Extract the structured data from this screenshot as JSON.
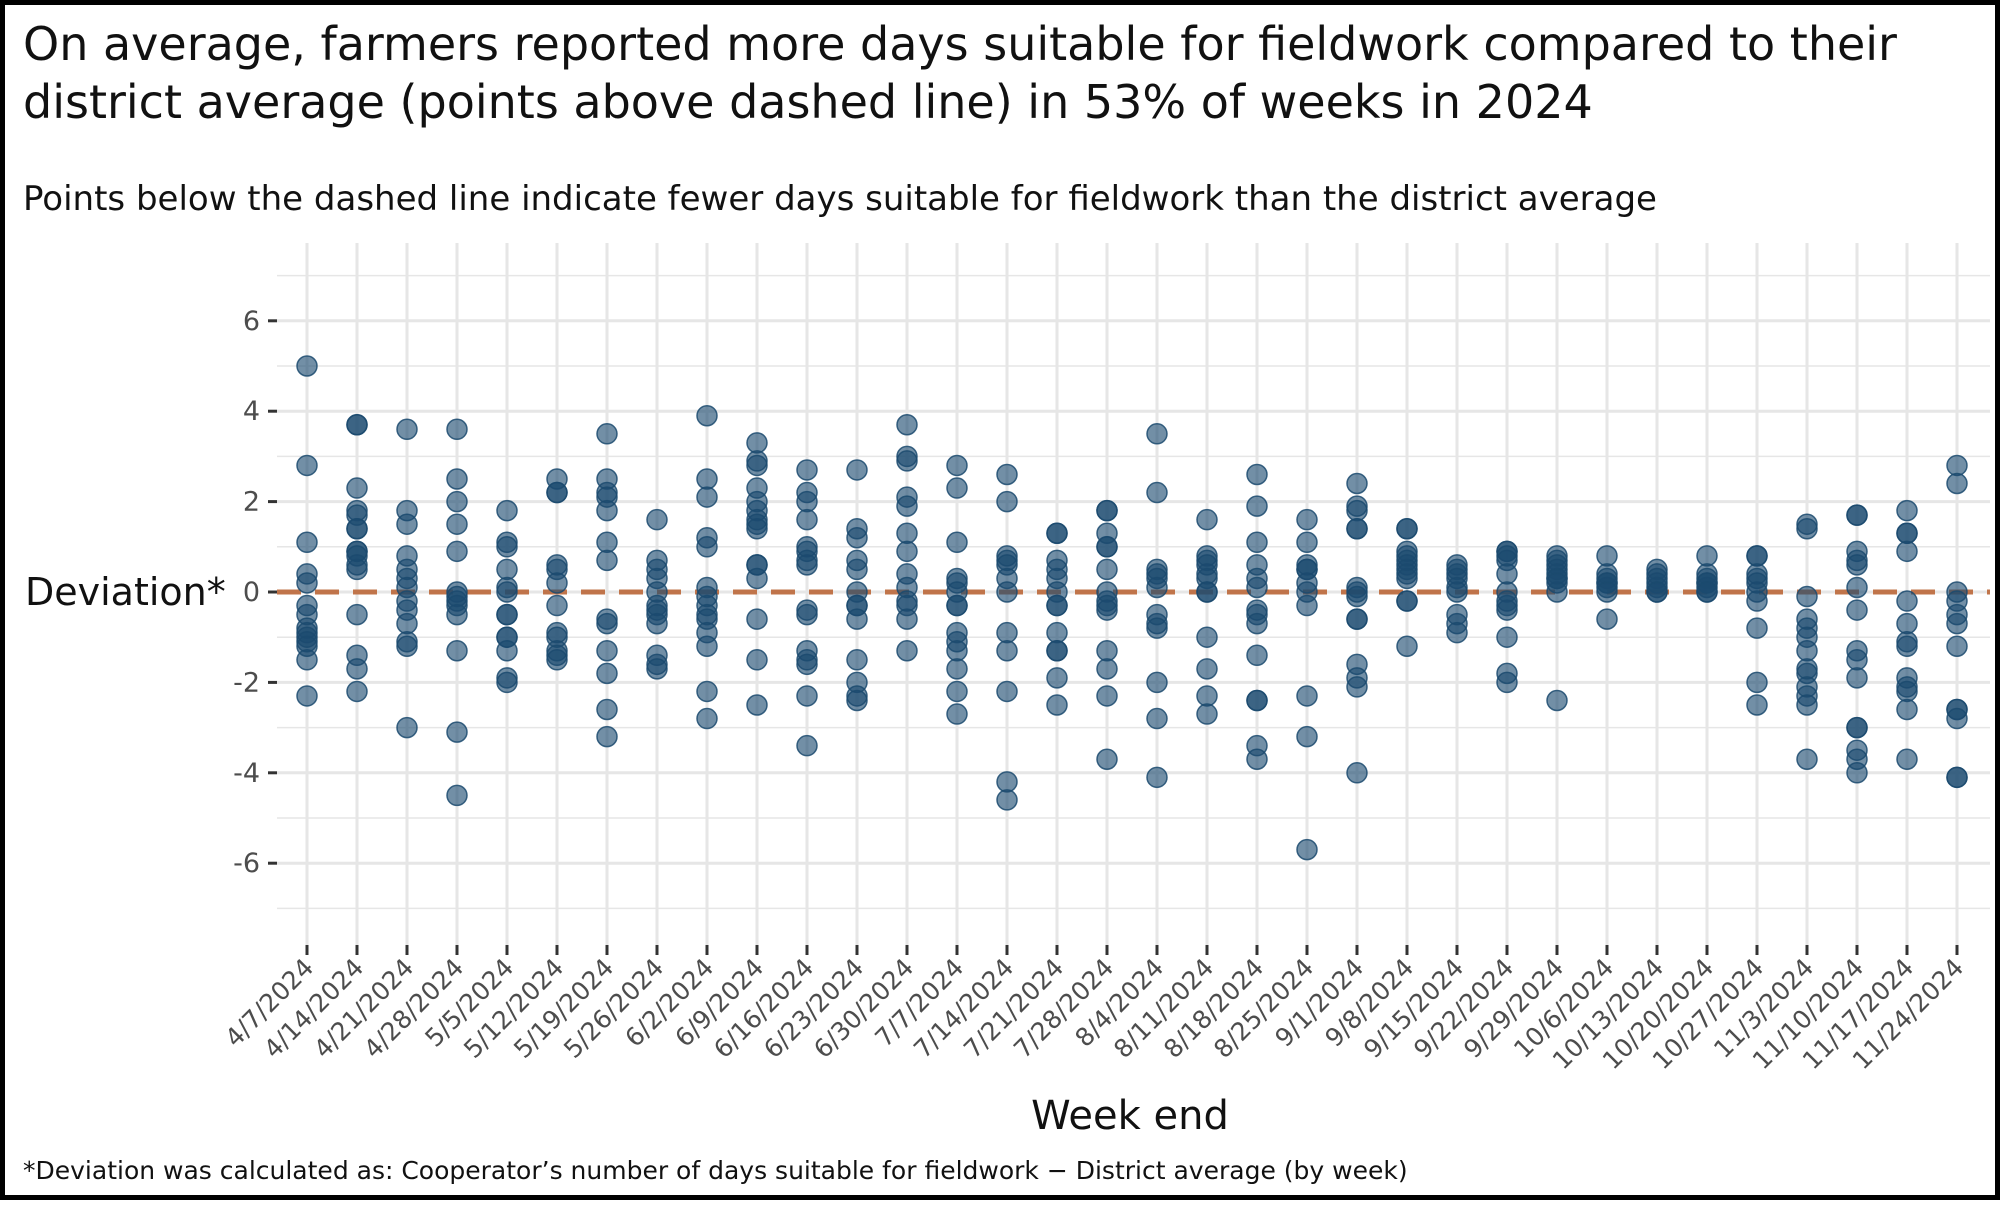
{
  "title": "On average, farmers reported more days suitable for fieldwork compared to their district average (points above dashed line) in 53% of weeks in 2024",
  "subtitle": "Points below the dashed line indicate fewer days suitable for fieldwork than the district average",
  "caption": "*Deviation was calculated as: Cooperator’s number of days suitable for fieldwork − District average (by week)",
  "colors": {
    "points": "#1b4a6f",
    "reference_line": "#c0744a",
    "grid": "#e6e6e6",
    "text": "#111111",
    "tick_text": "#4d4d4d"
  },
  "chart_data": {
    "type": "scatter",
    "xlabel": "Week end",
    "ylabel": "Deviation*",
    "ylim": [
      -7.7,
      7.7
    ],
    "yticks": [
      6,
      4,
      2,
      0,
      -2,
      -4,
      -6
    ],
    "ytick_labels": [
      "6",
      "4",
      "2",
      "0",
      "-2",
      "-4",
      "-6"
    ],
    "grid": true,
    "reference_line": {
      "y": 0,
      "style": "dashed"
    },
    "categories": [
      "4/7/2024",
      "4/14/2024",
      "4/21/2024",
      "4/28/2024",
      "5/5/2024",
      "5/12/2024",
      "5/19/2024",
      "5/26/2024",
      "6/2/2024",
      "6/9/2024",
      "6/16/2024",
      "6/23/2024",
      "6/30/2024",
      "7/7/2024",
      "7/14/2024",
      "7/21/2024",
      "7/28/2024",
      "8/4/2024",
      "8/11/2024",
      "8/18/2024",
      "8/25/2024",
      "9/1/2024",
      "9/8/2024",
      "9/15/2024",
      "9/22/2024",
      "9/29/2024",
      "10/6/2024",
      "10/13/2024",
      "10/20/2024",
      "10/27/2024",
      "11/3/2024",
      "11/10/2024",
      "11/17/2024",
      "11/24/2024"
    ],
    "values": [
      [
        5.0,
        2.8,
        1.1,
        0.4,
        0.2,
        -0.3,
        -0.5,
        -0.8,
        -0.9,
        -1.0,
        -1.1,
        -1.2,
        -1.5,
        -2.3
      ],
      [
        3.7,
        3.7,
        2.3,
        1.8,
        1.7,
        1.4,
        1.4,
        0.9,
        0.9,
        0.8,
        0.6,
        0.5,
        -0.5,
        -1.4,
        -1.7,
        -2.2
      ],
      [
        3.6,
        1.8,
        1.5,
        0.8,
        0.5,
        0.3,
        0.1,
        -0.2,
        -0.4,
        -0.7,
        -1.1,
        -1.2,
        -3.0
      ],
      [
        3.6,
        2.5,
        2.0,
        1.5,
        0.9,
        0.0,
        -0.1,
        -0.2,
        -0.3,
        -0.5,
        -1.3,
        -3.1,
        -4.5
      ],
      [
        1.8,
        1.1,
        1.0,
        0.5,
        0.1,
        0.0,
        -0.5,
        -0.5,
        -1.0,
        -1.0,
        -1.3,
        -1.9,
        -2.0
      ],
      [
        2.5,
        2.2,
        2.2,
        0.6,
        0.5,
        0.2,
        -0.3,
        -0.9,
        -1.0,
        -1.3,
        -1.4,
        -1.5
      ],
      [
        3.5,
        2.5,
        2.2,
        2.1,
        1.8,
        1.1,
        0.7,
        -0.6,
        -0.7,
        -1.3,
        -1.8,
        -2.6,
        -3.2
      ],
      [
        1.6,
        0.7,
        0.5,
        0.3,
        0.0,
        -0.3,
        -0.4,
        -0.5,
        -0.7,
        -1.4,
        -1.6,
        -1.7
      ],
      [
        3.9,
        2.5,
        2.1,
        1.2,
        1.0,
        0.1,
        -0.1,
        -0.3,
        -0.5,
        -0.6,
        -0.9,
        -1.2,
        -2.2,
        -2.8
      ],
      [
        3.3,
        2.9,
        2.8,
        2.3,
        2.0,
        1.8,
        1.6,
        1.5,
        1.4,
        0.6,
        0.6,
        0.3,
        -0.6,
        -1.5,
        -2.5
      ],
      [
        2.7,
        2.2,
        2.0,
        1.6,
        1.0,
        0.9,
        0.7,
        0.6,
        -0.4,
        -0.5,
        -1.3,
        -1.5,
        -1.6,
        -2.3,
        -3.4
      ],
      [
        2.7,
        1.4,
        1.2,
        0.7,
        0.5,
        0.0,
        -0.3,
        -0.3,
        -0.6,
        -1.5,
        -2.0,
        -2.3,
        -2.4
      ],
      [
        3.7,
        3.0,
        2.9,
        2.1,
        1.9,
        1.3,
        0.9,
        0.4,
        0.1,
        -0.2,
        -0.3,
        -0.6,
        -1.3
      ],
      [
        2.8,
        2.3,
        1.1,
        0.3,
        0.2,
        0.0,
        -0.3,
        -0.3,
        -0.9,
        -1.1,
        -1.3,
        -1.7,
        -2.2,
        -2.7
      ],
      [
        2.6,
        2.0,
        0.8,
        0.7,
        0.6,
        0.3,
        0.0,
        -0.9,
        -1.3,
        -2.2,
        -4.2,
        -4.6
      ],
      [
        1.3,
        1.3,
        0.7,
        0.5,
        0.3,
        0.0,
        -0.3,
        -0.3,
        -0.9,
        -1.3,
        -1.3,
        -1.9,
        -2.5
      ],
      [
        1.8,
        1.8,
        1.3,
        1.0,
        1.0,
        0.5,
        0.0,
        -0.2,
        -0.3,
        -0.4,
        -1.3,
        -1.7,
        -2.3,
        -3.7
      ],
      [
        3.5,
        2.2,
        0.5,
        0.4,
        0.3,
        0.1,
        -0.5,
        -0.7,
        -0.8,
        -2.0,
        -2.8,
        -4.1
      ],
      [
        1.6,
        0.8,
        0.7,
        0.6,
        0.4,
        0.3,
        0.0,
        0.0,
        -1.0,
        -1.7,
        -2.3,
        -2.7
      ],
      [
        2.6,
        1.9,
        1.1,
        0.6,
        0.3,
        0.1,
        -0.4,
        -0.5,
        -0.7,
        -1.4,
        -2.4,
        -2.4,
        -3.4,
        -3.7
      ],
      [
        1.6,
        1.1,
        0.6,
        0.5,
        0.5,
        0.2,
        0.0,
        -0.3,
        -2.3,
        -3.2,
        -5.7
      ],
      [
        2.4,
        1.9,
        1.8,
        1.4,
        1.4,
        0.1,
        0.0,
        -0.1,
        -0.6,
        -0.6,
        -1.6,
        -1.9,
        -2.1,
        -4.0
      ],
      [
        1.4,
        1.4,
        0.9,
        0.8,
        0.7,
        0.6,
        0.5,
        0.4,
        0.3,
        -0.2,
        -0.2,
        -1.2
      ],
      [
        0.6,
        0.5,
        0.4,
        0.3,
        0.1,
        0.0,
        -0.5,
        -0.7,
        -0.9
      ],
      [
        0.9,
        0.9,
        0.8,
        0.7,
        0.4,
        0.0,
        -0.2,
        -0.3,
        -0.4,
        -1.0,
        -1.8,
        -2.0
      ],
      [
        0.8,
        0.7,
        0.6,
        0.5,
        0.4,
        0.3,
        0.3,
        0.2,
        0.0,
        -2.4
      ],
      [
        0.8,
        0.4,
        0.3,
        0.2,
        0.2,
        0.1,
        0.0,
        -0.6
      ],
      [
        0.5,
        0.4,
        0.3,
        0.2,
        0.1,
        0.0,
        0.0
      ],
      [
        0.8,
        0.4,
        0.3,
        0.2,
        0.2,
        0.1,
        0.0,
        0.0
      ],
      [
        0.8,
        0.8,
        0.4,
        0.3,
        0.2,
        0.0,
        -0.2,
        -0.8,
        -2.0,
        -2.5
      ],
      [
        1.5,
        1.4,
        -0.1,
        -0.6,
        -0.8,
        -1.0,
        -1.3,
        -1.7,
        -1.8,
        -2.1,
        -2.3,
        -2.5,
        -3.7
      ],
      [
        1.7,
        1.7,
        0.9,
        0.7,
        0.6,
        0.1,
        -0.4,
        -1.3,
        -1.5,
        -1.9,
        -3.0,
        -3.0,
        -3.5,
        -3.7,
        -4.0
      ],
      [
        1.8,
        1.3,
        1.3,
        0.9,
        -0.2,
        -0.7,
        -1.1,
        -1.2,
        -1.9,
        -2.1,
        -2.2,
        -2.6,
        -3.7
      ],
      [
        2.8,
        2.4,
        0.0,
        -0.2,
        -0.5,
        -0.7,
        -1.2,
        -2.6,
        -2.6,
        -2.8,
        -4.1,
        -4.1
      ]
    ]
  }
}
